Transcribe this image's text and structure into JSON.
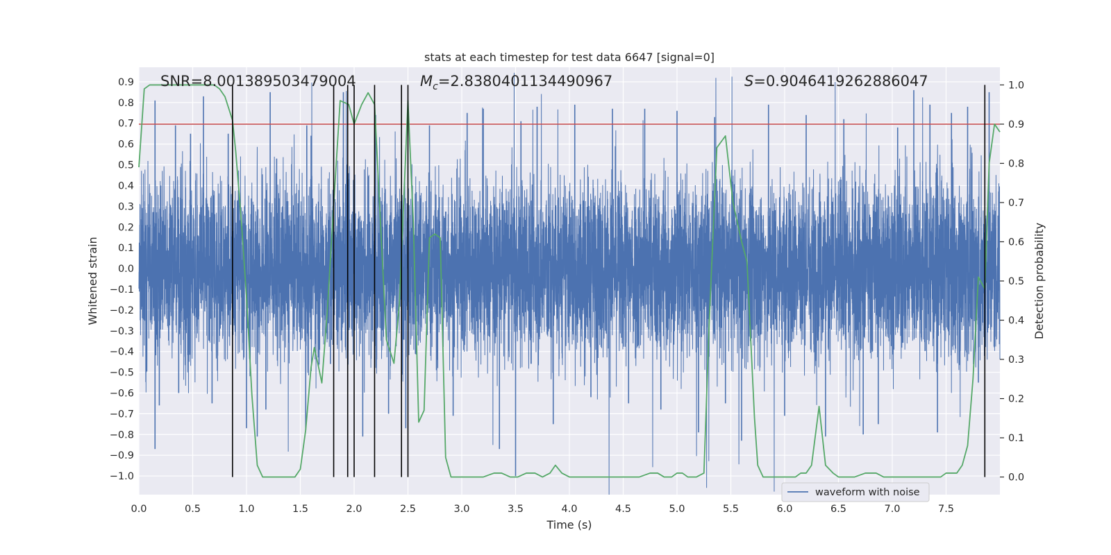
{
  "chart_data": {
    "type": "line",
    "title": "stats at each timestep for test data 6647 [signal=0]",
    "xlabel": "Time (s)",
    "ylabel_left": "Whitened strain",
    "ylabel_right": "Detection probability",
    "xlim": [
      0.0,
      8.0
    ],
    "ylim_left": [
      -1.09,
      0.97
    ],
    "ylim_right": [
      -0.045,
      1.045
    ],
    "x_ticks": [
      "0.0",
      "0.5",
      "1.0",
      "1.5",
      "2.0",
      "2.5",
      "3.0",
      "3.5",
      "4.0",
      "4.5",
      "5.0",
      "5.5",
      "6.0",
      "6.5",
      "7.0",
      "7.5"
    ],
    "x_tick_values": [
      0.0,
      0.5,
      1.0,
      1.5,
      2.0,
      2.5,
      3.0,
      3.5,
      4.0,
      4.5,
      5.0,
      5.5,
      6.0,
      6.5,
      7.0,
      7.5
    ],
    "y_ticks_left": [
      "0.9",
      "0.8",
      "0.7",
      "0.6",
      "0.5",
      "0.4",
      "0.3",
      "0.2",
      "0.1",
      "0.0",
      "−0.1",
      "−0.2",
      "−0.3",
      "−0.4",
      "−0.5",
      "−0.6",
      "−0.7",
      "−0.8",
      "−0.9",
      "−1.0"
    ],
    "y_tick_values_left": [
      0.9,
      0.8,
      0.7,
      0.6,
      0.5,
      0.4,
      0.3,
      0.2,
      0.1,
      0.0,
      -0.1,
      -0.2,
      -0.3,
      -0.4,
      -0.5,
      -0.6,
      -0.7,
      -0.8,
      -0.9,
      -1.0
    ],
    "y_ticks_right": [
      "1.0",
      "0.9",
      "0.8",
      "0.7",
      "0.6",
      "0.5",
      "0.4",
      "0.3",
      "0.2",
      "0.1",
      "0.0"
    ],
    "y_tick_values_right": [
      1.0,
      0.9,
      0.8,
      0.7,
      0.6,
      0.5,
      0.4,
      0.3,
      0.2,
      0.1,
      0.0
    ],
    "annotations": {
      "snr": "SNR=8.001389503479004",
      "mc_symbol": "M",
      "mc_sub": "c",
      "mc_value": "=2.8380401134490967",
      "s_symbol": "S",
      "s_value": "=0.9046419262886047"
    },
    "threshold": {
      "value": 0.9,
      "color": "#c44e52"
    },
    "vertical_lines": [
      0.87,
      1.81,
      1.94,
      2.0,
      2.19,
      2.44,
      2.5,
      7.86
    ],
    "waveform": {
      "name": "waveform with noise",
      "color": "#4c72b0",
      "samples": 8192,
      "envelope": 0.22,
      "spikes": [
        {
          "t": 0.15,
          "v": -0.87
        },
        {
          "t": 0.15,
          "v": 0.81
        },
        {
          "t": 0.19,
          "v": -0.66
        },
        {
          "t": 0.34,
          "v": 0.69
        },
        {
          "t": 0.37,
          "v": -0.6
        },
        {
          "t": 0.48,
          "v": 0.65
        },
        {
          "t": 0.6,
          "v": 0.83
        },
        {
          "t": 0.68,
          "v": -0.65
        },
        {
          "t": 0.83,
          "v": 0.65
        },
        {
          "t": 1.0,
          "v": -0.77
        },
        {
          "t": 1.1,
          "v": -0.81
        },
        {
          "t": 1.18,
          "v": -0.68
        },
        {
          "t": 1.22,
          "v": 0.85
        },
        {
          "t": 1.28,
          "v": 0.53
        },
        {
          "t": 1.55,
          "v": -0.78
        },
        {
          "t": 1.56,
          "v": 0.69
        },
        {
          "t": 1.6,
          "v": 0.64
        },
        {
          "t": 1.78,
          "v": -0.46
        },
        {
          "t": 1.9,
          "v": 0.85
        },
        {
          "t": 2.08,
          "v": -0.81
        },
        {
          "t": 2.2,
          "v": 0.74
        },
        {
          "t": 2.32,
          "v": -0.7
        },
        {
          "t": 2.48,
          "v": -0.77
        },
        {
          "t": 2.7,
          "v": 0.69
        },
        {
          "t": 2.92,
          "v": -0.71
        },
        {
          "t": 3.05,
          "v": 0.75
        },
        {
          "t": 3.2,
          "v": 0.77
        },
        {
          "t": 3.35,
          "v": -0.87
        },
        {
          "t": 3.5,
          "v": -1.0
        },
        {
          "t": 3.55,
          "v": 0.71
        },
        {
          "t": 3.7,
          "v": 0.78
        },
        {
          "t": 3.85,
          "v": -0.75
        },
        {
          "t": 4.05,
          "v": 0.79
        },
        {
          "t": 4.2,
          "v": -0.62
        },
        {
          "t": 4.4,
          "v": 0.77
        },
        {
          "t": 4.55,
          "v": -0.65
        },
        {
          "t": 4.7,
          "v": 0.77
        },
        {
          "t": 4.85,
          "v": -0.68
        },
        {
          "t": 5.0,
          "v": 0.76
        },
        {
          "t": 5.2,
          "v": -0.79
        },
        {
          "t": 5.35,
          "v": 0.73
        },
        {
          "t": 5.45,
          "v": -0.65
        },
        {
          "t": 5.6,
          "v": -0.83
        },
        {
          "t": 5.85,
          "v": 0.79
        },
        {
          "t": 6.0,
          "v": -0.71
        },
        {
          "t": 6.2,
          "v": 0.74
        },
        {
          "t": 6.38,
          "v": -0.81
        },
        {
          "t": 6.55,
          "v": 0.72
        },
        {
          "t": 6.73,
          "v": -0.8
        },
        {
          "t": 6.87,
          "v": -0.75
        },
        {
          "t": 7.05,
          "v": 0.68
        },
        {
          "t": 7.2,
          "v": 0.86
        },
        {
          "t": 7.35,
          "v": 0.79
        },
        {
          "t": 7.42,
          "v": -0.79
        },
        {
          "t": 7.55,
          "v": 0.75
        },
        {
          "t": 7.7,
          "v": 0.78
        },
        {
          "t": 7.8,
          "v": -0.55
        },
        {
          "t": 7.9,
          "v": 0.85
        }
      ]
    },
    "probability": {
      "color": "#55a868",
      "x": [
        0.0,
        0.05,
        0.1,
        0.2,
        0.3,
        0.4,
        0.5,
        0.6,
        0.65,
        0.7,
        0.75,
        0.8,
        0.87,
        0.9,
        0.95,
        1.0,
        1.05,
        1.1,
        1.15,
        1.2,
        1.3,
        1.4,
        1.45,
        1.5,
        1.55,
        1.6,
        1.63,
        1.67,
        1.7,
        1.75,
        1.8,
        1.87,
        1.95,
        2.0,
        2.07,
        2.13,
        2.19,
        2.25,
        2.3,
        2.37,
        2.42,
        2.5,
        2.55,
        2.6,
        2.65,
        2.7,
        2.75,
        2.8,
        2.85,
        2.9,
        2.95,
        3.0,
        3.1,
        3.2,
        3.3,
        3.37,
        3.45,
        3.52,
        3.6,
        3.68,
        3.75,
        3.82,
        3.87,
        3.93,
        4.0,
        4.07,
        4.15,
        4.3,
        4.45,
        4.5,
        4.55,
        4.65,
        4.75,
        4.82,
        4.88,
        4.95,
        5.0,
        5.05,
        5.1,
        5.18,
        5.25,
        5.3,
        5.37,
        5.45,
        5.52,
        5.6,
        5.65,
        5.72,
        5.75,
        5.8,
        5.85,
        6.0,
        6.1,
        6.15,
        6.2,
        6.25,
        6.32,
        6.38,
        6.45,
        6.5,
        6.57,
        6.65,
        6.75,
        6.85,
        6.92,
        7.0,
        7.1,
        7.2,
        7.3,
        7.4,
        7.45,
        7.5,
        7.55,
        7.6,
        7.65,
        7.7,
        7.75,
        7.8,
        7.86,
        7.9,
        7.95,
        8.0
      ],
      "y": [
        0.79,
        0.99,
        1.0,
        1.0,
        1.0,
        1.0,
        1.0,
        1.0,
        1.0,
        1.0,
        0.99,
        0.97,
        0.91,
        0.83,
        0.66,
        0.46,
        0.21,
        0.03,
        0.0,
        0.0,
        0.0,
        0.0,
        0.0,
        0.02,
        0.12,
        0.28,
        0.33,
        0.28,
        0.24,
        0.42,
        0.65,
        0.96,
        0.95,
        0.9,
        0.95,
        0.98,
        0.95,
        0.62,
        0.35,
        0.29,
        0.44,
        0.96,
        0.65,
        0.14,
        0.17,
        0.61,
        0.62,
        0.61,
        0.05,
        0.0,
        0.0,
        0.0,
        0.0,
        0.0,
        0.01,
        0.01,
        0.0,
        0.0,
        0.01,
        0.01,
        0.0,
        0.01,
        0.03,
        0.01,
        0.0,
        0.0,
        0.0,
        0.0,
        0.0,
        0.0,
        0.0,
        0.0,
        0.01,
        0.01,
        0.0,
        0.0,
        0.01,
        0.01,
        0.0,
        0.0,
        0.01,
        0.4,
        0.84,
        0.87,
        0.7,
        0.6,
        0.55,
        0.15,
        0.03,
        0.0,
        0.0,
        0.0,
        0.0,
        0.01,
        0.01,
        0.03,
        0.18,
        0.03,
        0.01,
        0.0,
        0.0,
        0.0,
        0.01,
        0.01,
        0.0,
        0.0,
        0.0,
        0.0,
        0.0,
        0.0,
        0.0,
        0.01,
        0.01,
        0.01,
        0.03,
        0.08,
        0.25,
        0.51,
        0.48,
        0.8,
        0.9,
        0.88
      ]
    },
    "legend": {
      "label": "waveform with noise",
      "placement": "lower-right"
    },
    "grid": true
  }
}
